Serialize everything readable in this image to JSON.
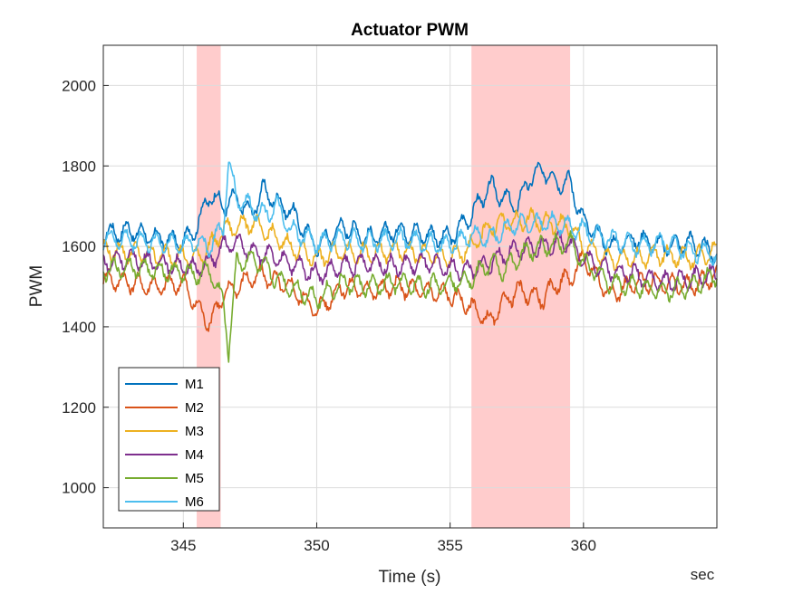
{
  "chart_data": {
    "type": "line",
    "title": "Actuator PWM",
    "xlabel": "Time (s)",
    "ylabel": "PWM",
    "x_unit_label": "sec",
    "xlim": [
      342,
      365
    ],
    "ylim": [
      900,
      2100
    ],
    "xticks": [
      345,
      350,
      355,
      360
    ],
    "yticks": [
      1000,
      1200,
      1400,
      1600,
      1800,
      2000
    ],
    "grid": true,
    "legend_position": "bottom-left",
    "highlight_regions": [
      {
        "x_start": 345.5,
        "x_end": 346.4,
        "color": "#ffcccc"
      },
      {
        "x_start": 355.8,
        "x_end": 359.5,
        "color": "#ffcccc"
      }
    ],
    "series": [
      {
        "name": "M1",
        "color": "#0072BD",
        "x": [
          342,
          343,
          344,
          345,
          345.5,
          346,
          346.5,
          347,
          347.5,
          348,
          348.5,
          349,
          350,
          351,
          352,
          353,
          354,
          355,
          355.8,
          356.5,
          357,
          357.5,
          358,
          358.5,
          359,
          359.5,
          360,
          361,
          362,
          363,
          364,
          365
        ],
        "y": [
          1630,
          1640,
          1620,
          1610,
          1650,
          1730,
          1700,
          1720,
          1680,
          1740,
          1710,
          1690,
          1600,
          1650,
          1620,
          1640,
          1630,
          1620,
          1680,
          1750,
          1720,
          1700,
          1770,
          1790,
          1760,
          1760,
          1660,
          1600,
          1620,
          1600,
          1610,
          1580
        ]
      },
      {
        "name": "M2",
        "color": "#D95319",
        "x": [
          342,
          343,
          344,
          345,
          345.5,
          346,
          346.5,
          347,
          347.5,
          348,
          348.5,
          349,
          350,
          351,
          352,
          353,
          354,
          355,
          355.8,
          356.5,
          357,
          357.5,
          358,
          358.5,
          359,
          359.5,
          360,
          361,
          362,
          363,
          364,
          365
        ],
        "y": [
          1520,
          1510,
          1500,
          1510,
          1450,
          1410,
          1480,
          1500,
          1520,
          1530,
          1510,
          1500,
          1440,
          1500,
          1490,
          1500,
          1490,
          1480,
          1450,
          1410,
          1460,
          1490,
          1480,
          1470,
          1510,
          1520,
          1570,
          1480,
          1510,
          1510,
          1500,
          1530
        ]
      },
      {
        "name": "M3",
        "color": "#EDB120",
        "x": [
          342,
          343,
          344,
          345,
          345.5,
          346,
          346.5,
          347,
          347.5,
          348,
          348.5,
          349,
          350,
          351,
          352,
          353,
          354,
          355,
          355.8,
          356.5,
          357,
          357.5,
          358,
          358.5,
          359,
          359.5,
          360,
          361,
          362,
          363,
          364,
          365
        ],
        "y": [
          1590,
          1585,
          1580,
          1575,
          1570,
          1600,
          1640,
          1650,
          1660,
          1640,
          1620,
          1600,
          1570,
          1590,
          1580,
          1590,
          1580,
          1570,
          1600,
          1650,
          1660,
          1660,
          1670,
          1660,
          1655,
          1650,
          1600,
          1570,
          1570,
          1580,
          1570,
          1590
        ]
      },
      {
        "name": "M4",
        "color": "#7E2F8E",
        "x": [
          342,
          343,
          344,
          345,
          345.5,
          346,
          346.5,
          347,
          347.5,
          348,
          348.5,
          349,
          350,
          351,
          352,
          353,
          354,
          355,
          355.8,
          356.5,
          357,
          357.5,
          358,
          358.5,
          359,
          359.5,
          360,
          361,
          362,
          363,
          364,
          365
        ],
        "y": [
          1560,
          1570,
          1560,
          1550,
          1545,
          1560,
          1600,
          1610,
          1590,
          1580,
          1570,
          1560,
          1530,
          1550,
          1560,
          1550,
          1560,
          1545,
          1540,
          1560,
          1580,
          1590,
          1595,
          1600,
          1610,
          1610,
          1570,
          1540,
          1530,
          1510,
          1520,
          1530
        ]
      },
      {
        "name": "M5",
        "color": "#77AC30",
        "x": [
          342,
          343,
          344,
          345,
          345.5,
          346,
          346.5,
          346.7,
          347,
          347.5,
          348,
          348.5,
          349,
          350,
          351,
          352,
          353,
          354,
          355,
          355.8,
          356.5,
          357,
          357.5,
          358,
          358.5,
          359,
          359.5,
          360,
          361,
          362,
          363,
          364,
          365
        ],
        "y": [
          1540,
          1550,
          1540,
          1535,
          1530,
          1540,
          1460,
          1340,
          1560,
          1570,
          1550,
          1520,
          1500,
          1470,
          1510,
          1500,
          1510,
          1500,
          1510,
          1520,
          1560,
          1540,
          1570,
          1590,
          1600,
          1605,
          1610,
          1560,
          1510,
          1500,
          1490,
          1500,
          1530
        ]
      },
      {
        "name": "M6",
        "color": "#4DBEEE",
        "x": [
          342,
          343,
          344,
          345,
          345.5,
          346,
          346.5,
          346.7,
          347,
          347.5,
          348,
          348.5,
          349,
          350,
          351,
          352,
          353,
          354,
          355,
          355.8,
          356.5,
          357,
          357.5,
          358,
          358.5,
          359,
          359.5,
          360,
          361,
          362,
          363,
          364,
          365
        ],
        "y": [
          1620,
          1615,
          1610,
          1605,
          1610,
          1600,
          1650,
          1810,
          1720,
          1700,
          1680,
          1700,
          1640,
          1610,
          1620,
          1610,
          1620,
          1610,
          1600,
          1630,
          1620,
          1640,
          1660,
          1650,
          1660,
          1660,
          1650,
          1640,
          1620,
          1600,
          1610,
          1590,
          1580
        ]
      }
    ]
  }
}
